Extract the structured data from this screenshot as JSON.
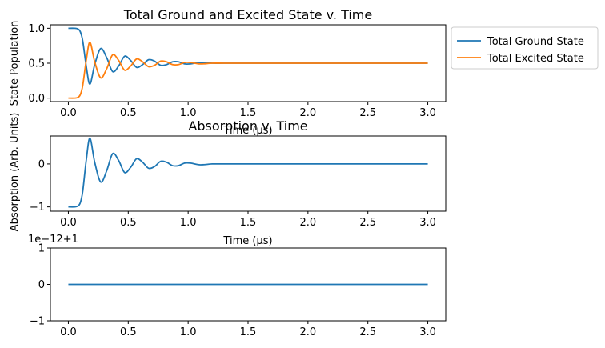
{
  "chart_data": [
    {
      "type": "line",
      "title": "Total Ground and Excited State v. Time",
      "xlabel": "Time (μs)",
      "ylabel": "State Population",
      "xlim": [
        -0.15,
        3.15
      ],
      "ylim": [
        -0.05,
        1.05
      ],
      "x_ticks": [
        "0.0",
        "0.5",
        "1.0",
        "1.5",
        "2.0",
        "2.5",
        "3.0"
      ],
      "x_tick_values": [
        0,
        0.5,
        1.0,
        1.5,
        2.0,
        2.5,
        3.0
      ],
      "y_ticks": [
        "0.0",
        "0.5",
        "1.0"
      ],
      "y_tick_values": [
        0,
        0.5,
        1.0
      ],
      "legend_position": "outside-right",
      "series": [
        {
          "name": "Total Ground State",
          "color": "#1f77b4",
          "x": [
            0,
            0.05,
            0.08,
            0.1,
            0.12,
            0.15,
            0.18,
            0.22,
            0.27,
            0.32,
            0.37,
            0.42,
            0.47,
            0.52,
            0.57,
            0.62,
            0.67,
            0.72,
            0.77,
            0.82,
            0.87,
            0.92,
            0.97,
            1.02,
            1.1,
            1.2,
            1.3,
            1.5,
            2.0,
            2.5,
            3.0
          ],
          "y": [
            1.0,
            1.0,
            0.99,
            0.95,
            0.82,
            0.45,
            0.2,
            0.48,
            0.71,
            0.58,
            0.38,
            0.46,
            0.6,
            0.54,
            0.44,
            0.48,
            0.55,
            0.53,
            0.47,
            0.48,
            0.52,
            0.52,
            0.49,
            0.49,
            0.51,
            0.5,
            0.5,
            0.5,
            0.5,
            0.5,
            0.5
          ]
        },
        {
          "name": "Total Excited State",
          "color": "#ff7f0e",
          "x": [
            0,
            0.05,
            0.08,
            0.1,
            0.12,
            0.15,
            0.18,
            0.22,
            0.27,
            0.32,
            0.37,
            0.42,
            0.47,
            0.52,
            0.57,
            0.62,
            0.67,
            0.72,
            0.77,
            0.82,
            0.87,
            0.92,
            0.97,
            1.02,
            1.1,
            1.2,
            1.3,
            1.5,
            2.0,
            2.5,
            3.0
          ],
          "y": [
            0.0,
            0.0,
            0.01,
            0.05,
            0.18,
            0.55,
            0.8,
            0.52,
            0.29,
            0.42,
            0.62,
            0.54,
            0.4,
            0.46,
            0.56,
            0.52,
            0.45,
            0.47,
            0.53,
            0.52,
            0.48,
            0.48,
            0.51,
            0.51,
            0.49,
            0.5,
            0.5,
            0.5,
            0.5,
            0.5,
            0.5
          ]
        }
      ]
    },
    {
      "type": "line",
      "title": "Absorption v. Time",
      "xlabel": "Time (μs)",
      "ylabel": "Absorption (Arb. Units)",
      "xlim": [
        -0.15,
        3.15
      ],
      "ylim": [
        -1.1,
        0.65
      ],
      "x_ticks": [
        "0.0",
        "0.5",
        "1.0",
        "1.5",
        "2.0",
        "2.5",
        "3.0"
      ],
      "x_tick_values": [
        0,
        0.5,
        1.0,
        1.5,
        2.0,
        2.5,
        3.0
      ],
      "y_ticks": [
        "−1",
        "0"
      ],
      "y_tick_values": [
        -1,
        0
      ],
      "series": [
        {
          "name": "",
          "color": "#1f77b4",
          "x": [
            0,
            0.05,
            0.08,
            0.1,
            0.12,
            0.15,
            0.18,
            0.22,
            0.27,
            0.32,
            0.37,
            0.42,
            0.47,
            0.52,
            0.57,
            0.62,
            0.67,
            0.72,
            0.77,
            0.82,
            0.87,
            0.92,
            0.97,
            1.02,
            1.1,
            1.2,
            1.3,
            1.5,
            2.0,
            2.5,
            3.0
          ],
          "y": [
            -1.0,
            -1.0,
            -0.98,
            -0.9,
            -0.64,
            0.1,
            0.6,
            0.04,
            -0.42,
            -0.16,
            0.24,
            0.08,
            -0.2,
            -0.08,
            0.12,
            0.04,
            -0.1,
            -0.06,
            0.06,
            0.04,
            -0.04,
            -0.04,
            0.02,
            0.02,
            -0.02,
            0.0,
            0.0,
            0.0,
            0.0,
            0.0,
            0.0
          ]
        }
      ]
    },
    {
      "type": "line",
      "offset_text": "1e−12+1",
      "xlim": [
        -0.15,
        3.15
      ],
      "ylim": [
        -1,
        1
      ],
      "x_ticks": [
        "0.0",
        "0.5",
        "1.0",
        "1.5",
        "2.0",
        "2.5",
        "3.0"
      ],
      "x_tick_values": [
        0,
        0.5,
        1.0,
        1.5,
        2.0,
        2.5,
        3.0
      ],
      "y_ticks": [
        "−1",
        "0",
        "1"
      ],
      "y_tick_values": [
        -1,
        0,
        1
      ],
      "series": [
        {
          "name": "",
          "color": "#1f77b4",
          "x": [
            0,
            3.0
          ],
          "y": [
            0,
            0
          ]
        }
      ]
    }
  ]
}
